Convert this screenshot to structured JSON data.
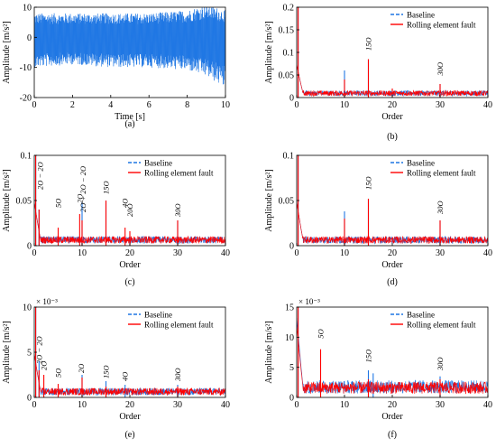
{
  "colors": {
    "baseline": "#1f77e4",
    "fault": "#ff0000",
    "signal": "#1f77e4",
    "axis": "#000000"
  },
  "chart_data": [
    {
      "id": "a",
      "type": "line",
      "caption": "(a)",
      "xlabel": "Time [s]",
      "ylabel": "Amplitude [m/s²]",
      "xlim": [
        0,
        10
      ],
      "ylim": [
        -20,
        10
      ],
      "xticks": [
        0,
        2,
        4,
        6,
        8,
        10
      ],
      "yticks": [
        -20,
        -10,
        0,
        10
      ],
      "series": [
        {
          "envelope_x": [
            0,
            2,
            4,
            6,
            8,
            9,
            10
          ],
          "envelope_upper": [
            8,
            8,
            8,
            8,
            9,
            11,
            9
          ],
          "envelope_lower": [
            -10,
            -9,
            -10,
            -10,
            -11,
            -13,
            -17
          ]
        }
      ]
    },
    {
      "id": "b",
      "type": "line",
      "caption": "(b)",
      "xlabel": "Order",
      "ylabel": "Amplitude [m/s²]",
      "xlim": [
        0,
        40
      ],
      "ylim": [
        0,
        0.2
      ],
      "xticks": [
        0,
        10,
        20,
        30,
        40
      ],
      "yticks": [
        0,
        0.05,
        0.1,
        0.15,
        0.2
      ],
      "legend": {
        "position": "top-right",
        "entries": [
          "Baseline",
          "Rolling element fault"
        ]
      },
      "series": [
        {
          "name": "Baseline",
          "floor": 0.012,
          "peaks": [
            [
              0.3,
              0.2
            ],
            [
              10,
              0.06
            ],
            [
              15,
              0.085
            ],
            [
              30,
              0.03
            ]
          ]
        },
        {
          "name": "Rolling element fault",
          "floor": 0.012,
          "peaks": [
            [
              0.3,
              0.2
            ],
            [
              10,
              0.04
            ],
            [
              15,
              0.085
            ],
            [
              20,
              0.02
            ],
            [
              30,
              0.03
            ]
          ]
        }
      ],
      "annotations": [
        {
          "text": "15O",
          "sub": "i",
          "x": 15,
          "y": 0.1
        },
        {
          "text": "30O",
          "sub": "i",
          "x": 30,
          "y": 0.045
        }
      ]
    },
    {
      "id": "c",
      "type": "line",
      "caption": "(c)",
      "xlabel": "Order",
      "ylabel": "Amplitude [m/s²]",
      "xlim": [
        0,
        40
      ],
      "ylim": [
        0,
        0.1
      ],
      "xticks": [
        0,
        10,
        20,
        30,
        40
      ],
      "yticks": [
        0,
        0.05,
        0.1
      ],
      "legend": {
        "position": "top-right",
        "entries": [
          "Baseline",
          "Rolling element fault"
        ]
      },
      "series": [
        {
          "name": "Baseline",
          "floor": 0.008,
          "peaks": [
            [
              0.3,
              0.1
            ],
            [
              1,
              0.04
            ],
            [
              10,
              0.048
            ],
            [
              15,
              0.05
            ],
            [
              30,
              0.028
            ]
          ]
        },
        {
          "name": "Rolling element fault",
          "floor": 0.008,
          "peaks": [
            [
              0.3,
              0.1
            ],
            [
              1,
              0.04
            ],
            [
              5,
              0.02
            ],
            [
              9.5,
              0.035
            ],
            [
              10,
              0.028
            ],
            [
              15,
              0.05
            ],
            [
              19,
              0.02
            ],
            [
              20,
              0.016
            ],
            [
              30,
              0.028
            ]
          ]
        }
      ],
      "annotations": [
        {
          "text": "2O  − 2O",
          "x": 1.2,
          "y": 0.06
        },
        {
          "text": "5O",
          "x": 5,
          "y": 0.04
        },
        {
          "text": "2O",
          "x": 9.5,
          "y": 0.045
        },
        {
          "text": "2O  + 2O  − 2O",
          "x": 10.2,
          "y": 0.035
        },
        {
          "text": "15O",
          "x": 15,
          "y": 0.055
        },
        {
          "text": "4O",
          "x": 19,
          "y": 0.04
        },
        {
          "text": "20O",
          "x": 20,
          "y": 0.03
        },
        {
          "text": "30O",
          "x": 30,
          "y": 0.03
        }
      ]
    },
    {
      "id": "d",
      "type": "line",
      "caption": "(d)",
      "xlabel": "Order",
      "ylabel": "Amplitude [m/s²]",
      "xlim": [
        0,
        40
      ],
      "ylim": [
        0,
        0.1
      ],
      "xticks": [
        0,
        10,
        20,
        30,
        40
      ],
      "yticks": [
        0,
        0.05,
        0.1
      ],
      "legend": {
        "position": "top-right",
        "entries": [
          "Baseline",
          "Rolling element fault"
        ]
      },
      "series": [
        {
          "name": "Baseline",
          "floor": 0.008,
          "peaks": [
            [
              0.3,
              0.1
            ],
            [
              10,
              0.038
            ],
            [
              15,
              0.052
            ],
            [
              30,
              0.028
            ]
          ]
        },
        {
          "name": "Rolling element fault",
          "floor": 0.008,
          "peaks": [
            [
              0.3,
              0.1
            ],
            [
              10,
              0.03
            ],
            [
              15,
              0.052
            ],
            [
              30,
              0.028
            ]
          ]
        }
      ],
      "annotations": [
        {
          "text": "15O",
          "x": 15,
          "y": 0.06
        },
        {
          "text": "30O",
          "x": 30,
          "y": 0.033
        }
      ]
    },
    {
      "id": "e",
      "type": "line",
      "caption": "(e)",
      "xlabel": "Order",
      "ylabel": "Amplitude [m/s²]",
      "xlim": [
        0,
        40
      ],
      "ylim": [
        0,
        0.01
      ],
      "multiplier": "× 10⁻³",
      "xticks": [
        0,
        10,
        20,
        30,
        40
      ],
      "yticks": [
        0,
        0.005,
        0.01
      ],
      "ytick_labels": [
        "0",
        "5",
        "10"
      ],
      "legend": {
        "position": "top-right",
        "entries": [
          "Baseline",
          "Rolling element fault"
        ]
      },
      "series": [
        {
          "name": "Baseline",
          "floor": 0.0008,
          "peaks": [
            [
              0.3,
              0.01
            ],
            [
              1,
              0.004
            ],
            [
              10,
              0.0025
            ],
            [
              15,
              0.0018
            ],
            [
              19,
              0.0014
            ],
            [
              30,
              0.0014
            ]
          ]
        },
        {
          "name": "Rolling element fault",
          "floor": 0.0008,
          "peaks": [
            [
              0.3,
              0.01
            ],
            [
              1,
              0.003
            ],
            [
              2,
              0.0025
            ],
            [
              5,
              0.0015
            ],
            [
              10,
              0.0022
            ],
            [
              15,
              0.0012
            ],
            [
              30,
              0.0012
            ]
          ]
        }
      ],
      "annotations": [
        {
          "text": "2O  − 2O",
          "x": 1,
          "y": 0.0035
        },
        {
          "text": "2O",
          "x": 2,
          "y": 0.0028
        },
        {
          "text": "5O",
          "x": 5,
          "y": 0.002
        },
        {
          "text": "2O",
          "x": 9.8,
          "y": 0.0025
        },
        {
          "text": "15O",
          "x": 15,
          "y": 0.0019
        },
        {
          "text": "4O",
          "x": 19,
          "y": 0.0016
        },
        {
          "text": "30O",
          "x": 30,
          "y": 0.0016
        }
      ]
    },
    {
      "id": "f",
      "type": "line",
      "caption": "(f)",
      "xlabel": "Order",
      "ylabel": "Amplitude [m/s²]",
      "xlim": [
        0,
        40
      ],
      "ylim": [
        0,
        0.015
      ],
      "multiplier": "× 10⁻³",
      "xticks": [
        0,
        10,
        20,
        30,
        40
      ],
      "yticks": [
        0,
        0.005,
        0.01,
        0.015
      ],
      "ytick_labels": [
        "0",
        "5",
        "10",
        "15"
      ],
      "legend": {
        "position": "top-right",
        "entries": [
          "Baseline",
          "Rolling element fault"
        ]
      },
      "series": [
        {
          "name": "Baseline",
          "floor": 0.0022,
          "peaks": [
            [
              0.3,
              0.015
            ],
            [
              15,
              0.0045
            ],
            [
              16,
              0.004
            ],
            [
              30,
              0.0035
            ]
          ]
        },
        {
          "name": "Rolling element fault",
          "floor": 0.002,
          "peaks": [
            [
              0.3,
              0.015
            ],
            [
              5,
              0.008
            ],
            [
              15,
              0.003
            ],
            [
              30,
              0.003
            ]
          ]
        }
      ],
      "annotations": [
        {
          "text": "5O",
          "x": 5,
          "y": 0.0095
        },
        {
          "text": "15O",
          "x": 15,
          "y": 0.0055
        },
        {
          "text": "30O",
          "x": 30,
          "y": 0.0042
        }
      ]
    }
  ]
}
